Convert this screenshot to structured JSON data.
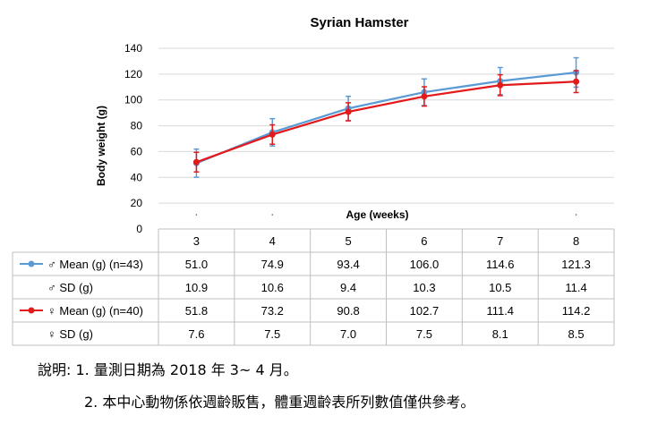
{
  "chart_data": {
    "type": "line",
    "title": "Syrian Hamster",
    "xlabel": "Age (weeks)",
    "ylabel": "Body weight (g)",
    "ylim": [
      0,
      140
    ],
    "yticks": [
      "0",
      "20",
      "40",
      "60",
      "80",
      "100",
      "120",
      "140"
    ],
    "categories": [
      "3",
      "4",
      "5",
      "6",
      "7",
      "8"
    ],
    "grid": true,
    "series": [
      {
        "name": "♂ Mean (g) (n=43)",
        "color": "#5b9bd5",
        "values": [
          51.0,
          74.9,
          93.4,
          106.0,
          114.6,
          121.3
        ],
        "values_text": [
          "51.0",
          "74.9",
          "93.4",
          "106.0",
          "114.6",
          "121.3"
        ],
        "sd_name": "♂ SD (g)",
        "sd": [
          10.9,
          10.6,
          9.4,
          10.3,
          10.5,
          11.4
        ],
        "sd_text": [
          "10.9",
          "10.6",
          "9.4",
          "10.3",
          "10.5",
          "11.4"
        ]
      },
      {
        "name": "♀ Mean (g) (n=40)",
        "color": "#e31a1c",
        "values": [
          51.8,
          73.2,
          90.8,
          102.7,
          111.4,
          114.2
        ],
        "values_text": [
          "51.8",
          "73.2",
          "90.8",
          "102.7",
          "111.4",
          "114.2"
        ],
        "sd_name": "♀ SD (g)",
        "sd": [
          7.6,
          7.5,
          7.0,
          7.5,
          8.1,
          8.5
        ],
        "sd_text": [
          "7.6",
          "7.5",
          "7.0",
          "7.5",
          "8.1",
          "8.5"
        ]
      }
    ]
  },
  "notes": {
    "line1": "說明: 1. 量測日期為 2018 年 3~ 4 月。",
    "line2": "2. 本中心動物係依週齡販售，體重週齡表所列數值僅供參考。"
  }
}
